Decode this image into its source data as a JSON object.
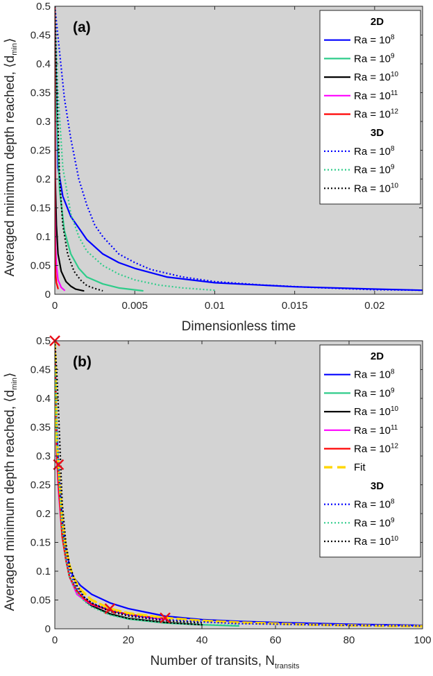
{
  "figure_panels": [
    "(a)",
    "(b)"
  ],
  "chart_data": [
    {
      "type": "line",
      "panel_label": "(a)",
      "xlabel": "Dimensionless time",
      "ylabel_main": "Averaged minimum depth reached, ⟨d",
      "ylabel_sub": "min",
      "ylabel_end": "⟩",
      "xlim": [
        0,
        0.023
      ],
      "ylim": [
        0,
        0.5
      ],
      "xticks": [
        0,
        0.005,
        0.01,
        0.015,
        0.02
      ],
      "xtick_labels": [
        "0",
        "0.005",
        "0.01",
        "0.015",
        "0.02"
      ],
      "yticks": [
        0,
        0.05,
        0.1,
        0.15,
        0.2,
        0.25,
        0.3,
        0.35,
        0.4,
        0.45,
        0.5
      ],
      "ytick_labels": [
        "0",
        "0.05",
        "0.1",
        "0.15",
        "0.2",
        "0.25",
        "0.3",
        "0.35",
        "0.4",
        "0.45",
        "0.5"
      ],
      "background": "#d3d3d3",
      "legend": {
        "position": "top-right",
        "groups": [
          {
            "heading": "2D",
            "entries": [
              {
                "label": "Ra = 10",
                "exp": "8",
                "color": "#0000ff",
                "style": "solid"
              },
              {
                "label": "Ra = 10",
                "exp": "9",
                "color": "#2ecc8a",
                "style": "solid"
              },
              {
                "label": "Ra = 10",
                "exp": "10",
                "color": "#000000",
                "style": "solid"
              },
              {
                "label": "Ra = 10",
                "exp": "11",
                "color": "#ff00ff",
                "style": "solid"
              },
              {
                "label": "Ra = 10",
                "exp": "12",
                "color": "#ff0000",
                "style": "solid"
              }
            ]
          },
          {
            "heading": "3D",
            "entries": [
              {
                "label": "Ra = 10",
                "exp": "8",
                "color": "#0000ff",
                "style": "dotted"
              },
              {
                "label": "Ra = 10",
                "exp": "9",
                "color": "#2ecc8a",
                "style": "dotted"
              },
              {
                "label": "Ra = 10",
                "exp": "10",
                "color": "#000000",
                "style": "dotted"
              }
            ]
          }
        ]
      },
      "series": [
        {
          "name": "2D Ra=1e8",
          "color": "#0000ff",
          "style": "solid",
          "x": [
            0,
            0.0002,
            0.0005,
            0.001,
            0.0015,
            0.002,
            0.003,
            0.004,
            0.005,
            0.007,
            0.01,
            0.015,
            0.02,
            0.023
          ],
          "y": [
            0.5,
            0.22,
            0.17,
            0.135,
            0.115,
            0.095,
            0.07,
            0.055,
            0.045,
            0.03,
            0.02,
            0.013,
            0.009,
            0.007
          ]
        },
        {
          "name": "2D Ra=1e9",
          "color": "#2ecc8a",
          "style": "solid",
          "x": [
            0,
            0.0001,
            0.0003,
            0.0006,
            0.001,
            0.0015,
            0.002,
            0.003,
            0.004,
            0.0055
          ],
          "y": [
            0.5,
            0.33,
            0.18,
            0.11,
            0.07,
            0.045,
            0.03,
            0.018,
            0.011,
            0.006
          ]
        },
        {
          "name": "2D Ra=1e10",
          "color": "#000000",
          "style": "solid",
          "x": [
            0,
            3e-05,
            0.0001,
            0.0002,
            0.0004,
            0.0007,
            0.001,
            0.0013,
            0.0018
          ],
          "y": [
            0.5,
            0.2,
            0.12,
            0.07,
            0.04,
            0.022,
            0.014,
            0.009,
            0.006
          ]
        },
        {
          "name": "2D Ra=1e11",
          "color": "#ff00ff",
          "style": "solid",
          "x": [
            0,
            1e-05,
            5e-05,
            0.0001,
            0.0002,
            0.0004,
            0.0006
          ],
          "y": [
            0.5,
            0.15,
            0.08,
            0.05,
            0.025,
            0.012,
            0.007
          ]
        },
        {
          "name": "2D Ra=1e12",
          "color": "#ff0000",
          "style": "solid",
          "x": [
            0,
            5e-06,
            2e-05,
            5e-05,
            0.0001,
            0.0002
          ],
          "y": [
            0.5,
            0.12,
            0.06,
            0.035,
            0.02,
            0.01
          ]
        },
        {
          "name": "3D Ra=1e8",
          "color": "#0000ff",
          "style": "dotted",
          "x": [
            0,
            0.0003,
            0.0006,
            0.001,
            0.0015,
            0.002,
            0.0025,
            0.003,
            0.004,
            0.005,
            0.006,
            0.008,
            0.01,
            0.013,
            0.016,
            0.02,
            0.023
          ],
          "y": [
            0.5,
            0.42,
            0.34,
            0.27,
            0.2,
            0.155,
            0.12,
            0.1,
            0.07,
            0.055,
            0.043,
            0.03,
            0.022,
            0.016,
            0.012,
            0.008,
            0.007
          ]
        },
        {
          "name": "3D Ra=1e9",
          "color": "#2ecc8a",
          "style": "dotted",
          "x": [
            0,
            0.0002,
            0.0005,
            0.001,
            0.0015,
            0.002,
            0.003,
            0.004,
            0.005,
            0.0065,
            0.008,
            0.01
          ],
          "y": [
            0.5,
            0.35,
            0.22,
            0.14,
            0.1,
            0.075,
            0.05,
            0.035,
            0.025,
            0.016,
            0.011,
            0.007
          ]
        },
        {
          "name": "3D Ra=1e10",
          "color": "#000000",
          "style": "dotted",
          "x": [
            0,
            0.0001,
            0.0003,
            0.0005,
            0.0008,
            0.0012,
            0.0016,
            0.002,
            0.0025,
            0.003
          ],
          "y": [
            0.5,
            0.38,
            0.2,
            0.12,
            0.07,
            0.04,
            0.025,
            0.015,
            0.01,
            0.006
          ]
        }
      ]
    },
    {
      "type": "line",
      "panel_label": "(b)",
      "xlabel_main": "Number of transits, N",
      "xlabel_sub": "transits",
      "ylabel_main": "Averaged minimum depth reached, ⟨d",
      "ylabel_sub": "min",
      "ylabel_end": "⟩",
      "xlim": [
        0,
        100
      ],
      "ylim": [
        0,
        0.5
      ],
      "xticks": [
        0,
        20,
        40,
        60,
        80,
        100
      ],
      "xtick_labels": [
        "0",
        "20",
        "40",
        "60",
        "80",
        "100"
      ],
      "yticks": [
        0,
        0.05,
        0.1,
        0.15,
        0.2,
        0.25,
        0.3,
        0.35,
        0.4,
        0.45,
        0.5
      ],
      "ytick_labels": [
        "0",
        "0.05",
        "0.1",
        "0.15",
        "0.2",
        "0.25",
        "0.3",
        "0.35",
        "0.4",
        "0.45",
        "0.5"
      ],
      "background": "#d3d3d3",
      "legend": {
        "position": "top-right",
        "groups": [
          {
            "heading": "2D",
            "entries": [
              {
                "label": "Ra = 10",
                "exp": "8",
                "color": "#0000ff",
                "style": "solid"
              },
              {
                "label": "Ra = 10",
                "exp": "9",
                "color": "#2ecc8a",
                "style": "solid"
              },
              {
                "label": "Ra = 10",
                "exp": "10",
                "color": "#000000",
                "style": "solid"
              },
              {
                "label": "Ra = 10",
                "exp": "11",
                "color": "#ff00ff",
                "style": "solid"
              },
              {
                "label": "Ra = 10",
                "exp": "12",
                "color": "#ff0000",
                "style": "solid"
              },
              {
                "label": "Fit",
                "exp": "",
                "color": "#ffd700",
                "style": "dashed"
              }
            ]
          },
          {
            "heading": "3D",
            "entries": [
              {
                "label": "Ra = 10",
                "exp": "8",
                "color": "#0000ff",
                "style": "dotted"
              },
              {
                "label": "Ra = 10",
                "exp": "9",
                "color": "#2ecc8a",
                "style": "dotted"
              },
              {
                "label": "Ra = 10",
                "exp": "10",
                "color": "#000000",
                "style": "dotted"
              }
            ]
          }
        ]
      },
      "series": [
        {
          "name": "2D Ra=1e8",
          "color": "#0000ff",
          "style": "solid",
          "x": [
            0,
            0.5,
            1,
            2,
            3,
            4,
            5,
            7,
            10,
            15,
            20,
            30,
            40,
            50,
            60,
            80,
            100
          ],
          "y": [
            0.5,
            0.35,
            0.28,
            0.19,
            0.14,
            0.11,
            0.09,
            0.075,
            0.06,
            0.045,
            0.035,
            0.022,
            0.016,
            0.013,
            0.011,
            0.008,
            0.006
          ]
        },
        {
          "name": "2D Ra=1e9",
          "color": "#2ecc8a",
          "style": "solid",
          "x": [
            0,
            0.5,
            1,
            2,
            3,
            4,
            6,
            8,
            10,
            15,
            20,
            30,
            40,
            50
          ],
          "y": [
            0.5,
            0.3,
            0.25,
            0.17,
            0.12,
            0.09,
            0.065,
            0.05,
            0.04,
            0.025,
            0.017,
            0.01,
            0.007,
            0.005
          ]
        },
        {
          "name": "2D Ra=1e10",
          "color": "#000000",
          "style": "solid",
          "x": [
            0,
            0.5,
            1,
            2,
            3,
            4,
            6,
            8,
            10,
            15,
            20,
            30,
            40
          ],
          "y": [
            0.5,
            0.32,
            0.26,
            0.17,
            0.12,
            0.09,
            0.066,
            0.05,
            0.04,
            0.026,
            0.018,
            0.011,
            0.007
          ]
        },
        {
          "name": "2D Ra=1e11",
          "color": "#ff00ff",
          "style": "solid",
          "x": [
            0,
            0.5,
            1,
            2,
            3,
            4,
            6,
            8,
            10,
            15,
            20,
            25,
            30
          ],
          "y": [
            0.5,
            0.3,
            0.24,
            0.16,
            0.12,
            0.09,
            0.06,
            0.05,
            0.042,
            0.032,
            0.025,
            0.02,
            0.016
          ]
        },
        {
          "name": "2D Ra=1e12",
          "color": "#ff0000",
          "style": "solid",
          "x": [
            0,
            0.5,
            1,
            2,
            3,
            4,
            6,
            8,
            10,
            15,
            20,
            25,
            30
          ],
          "y": [
            0.5,
            0.31,
            0.25,
            0.16,
            0.12,
            0.09,
            0.065,
            0.052,
            0.043,
            0.032,
            0.025,
            0.021,
            0.018
          ]
        },
        {
          "name": "Fit",
          "color": "#ffd700",
          "style": "dashed",
          "x": [
            0,
            0.5,
            1,
            2,
            3,
            4,
            5,
            7,
            10,
            15,
            20,
            30,
            40,
            50,
            60,
            70,
            80,
            90,
            100
          ],
          "y": [
            0.5,
            0.33,
            0.285,
            0.19,
            0.14,
            0.11,
            0.09,
            0.068,
            0.05,
            0.035,
            0.027,
            0.019,
            0.014,
            0.011,
            0.009,
            0.007,
            0.006,
            0.005,
            0.0045
          ]
        },
        {
          "name": "3D Ra=1e8",
          "color": "#0000ff",
          "style": "dotted",
          "x": [
            0,
            0.5,
            1,
            2,
            3,
            4,
            6,
            8,
            10,
            15,
            20,
            30,
            40,
            50,
            60,
            80,
            100
          ],
          "y": [
            0.5,
            0.36,
            0.29,
            0.18,
            0.13,
            0.1,
            0.07,
            0.055,
            0.045,
            0.032,
            0.024,
            0.016,
            0.012,
            0.009,
            0.008,
            0.006,
            0.005
          ]
        },
        {
          "name": "3D Ra=1e9",
          "color": "#2ecc8a",
          "style": "dotted",
          "x": [
            0,
            0.5,
            1,
            2,
            3,
            4,
            6,
            8,
            10,
            15,
            20,
            30,
            40,
            50
          ],
          "y": [
            0.5,
            0.34,
            0.27,
            0.17,
            0.12,
            0.09,
            0.063,
            0.048,
            0.038,
            0.024,
            0.017,
            0.01,
            0.007,
            0.006
          ]
        },
        {
          "name": "3D Ra=1e10",
          "color": "#000000",
          "style": "dotted",
          "x": [
            0,
            0.5,
            1,
            1.5,
            2,
            3,
            4,
            6,
            8,
            10,
            15,
            20,
            30,
            40
          ],
          "y": [
            0.5,
            0.45,
            0.38,
            0.3,
            0.22,
            0.15,
            0.11,
            0.075,
            0.055,
            0.045,
            0.03,
            0.022,
            0.014,
            0.01
          ]
        }
      ],
      "markers": {
        "symbol": "x",
        "color": "#e8101a",
        "points": [
          [
            0,
            0.5
          ],
          [
            1,
            0.285
          ],
          [
            15,
            0.035
          ],
          [
            30,
            0.019
          ]
        ]
      }
    }
  ]
}
